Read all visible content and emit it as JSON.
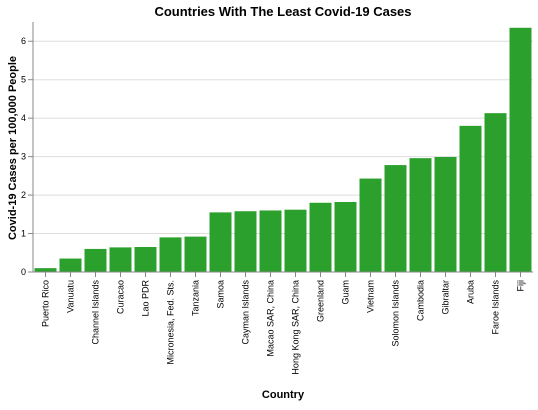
{
  "chart_data": {
    "type": "bar",
    "title": "Countries With The Least Covid-19 Cases",
    "xlabel": "Country",
    "ylabel": "Covid-19 Cases per 100,000 People",
    "ylim": [
      0,
      6.5
    ],
    "yticks": [
      0,
      1,
      2,
      3,
      4,
      5,
      6
    ],
    "grid": true,
    "bar_color": "#2ca02c",
    "categories": [
      "Puerto Rico",
      "Vanuatu",
      "Channel Islands",
      "Curacao",
      "Lao PDR",
      "Micronesia, Fed. Sts.",
      "Tanzania",
      "Samoa",
      "Cayman Islands",
      "Macao SAR, China",
      "Hong Kong SAR, China",
      "Greenland",
      "Guam",
      "Vietnam",
      "Solomon Islands",
      "Cambodia",
      "Gibraltar",
      "Aruba",
      "Faroe Islands",
      "Fiji"
    ],
    "values": [
      0.1,
      0.35,
      0.6,
      0.64,
      0.65,
      0.9,
      0.92,
      1.55,
      1.58,
      1.6,
      1.62,
      1.8,
      1.82,
      2.43,
      2.78,
      2.96,
      2.99,
      3.8,
      4.13,
      6.35
    ]
  }
}
